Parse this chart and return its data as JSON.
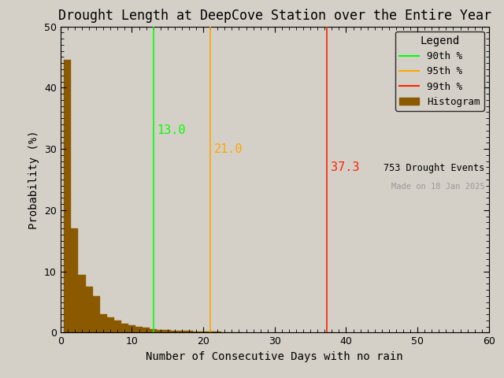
{
  "title": "Drought Length at DeepCove Station over the Entire Year",
  "xlabel": "Number of Consecutive Days with no rain",
  "ylabel": "Probability (%)",
  "xlim": [
    0,
    60
  ],
  "ylim": [
    0,
    50
  ],
  "xticks": [
    0,
    10,
    20,
    30,
    40,
    50,
    60
  ],
  "yticks": [
    0,
    10,
    20,
    30,
    40,
    50
  ],
  "bar_color": "#8B5A00",
  "bar_edge_color": "#8B5A00",
  "bg_color": "#D4D0C8",
  "axes_bg_color": "#D4D0C8",
  "p90_value": 13.0,
  "p95_value": 21.0,
  "p99_value": 37.3,
  "p90_color": "#00FF00",
  "p95_color": "#FFA500",
  "p99_color": "#FF2200",
  "p99_legend_color": "#333333",
  "n_events": 753,
  "made_on": "Made on 18 Jan 2025",
  "histogram_bars": [
    {
      "x": 1,
      "height": 44.5
    },
    {
      "x": 2,
      "height": 17.0
    },
    {
      "x": 3,
      "height": 9.5
    },
    {
      "x": 4,
      "height": 7.5
    },
    {
      "x": 5,
      "height": 6.0
    },
    {
      "x": 6,
      "height": 3.0
    },
    {
      "x": 7,
      "height": 2.5
    },
    {
      "x": 8,
      "height": 2.0
    },
    {
      "x": 9,
      "height": 1.5
    },
    {
      "x": 10,
      "height": 1.2
    },
    {
      "x": 11,
      "height": 1.0
    },
    {
      "x": 12,
      "height": 0.8
    },
    {
      "x": 13,
      "height": 0.55
    },
    {
      "x": 14,
      "height": 0.45
    },
    {
      "x": 15,
      "height": 0.45
    },
    {
      "x": 16,
      "height": 0.35
    },
    {
      "x": 17,
      "height": 0.28
    },
    {
      "x": 18,
      "height": 0.25
    },
    {
      "x": 19,
      "height": 0.2
    },
    {
      "x": 20,
      "height": 0.18
    },
    {
      "x": 21,
      "height": 0.15
    },
    {
      "x": 22,
      "height": 0.12
    },
    {
      "x": 23,
      "height": 0.1
    },
    {
      "x": 24,
      "height": 0.08
    },
    {
      "x": 25,
      "height": 0.06
    },
    {
      "x": 38,
      "height": 0.05
    }
  ],
  "title_fontsize": 12,
  "axis_fontsize": 10,
  "tick_fontsize": 9,
  "legend_fontsize": 9,
  "annotation_fontsize": 11
}
